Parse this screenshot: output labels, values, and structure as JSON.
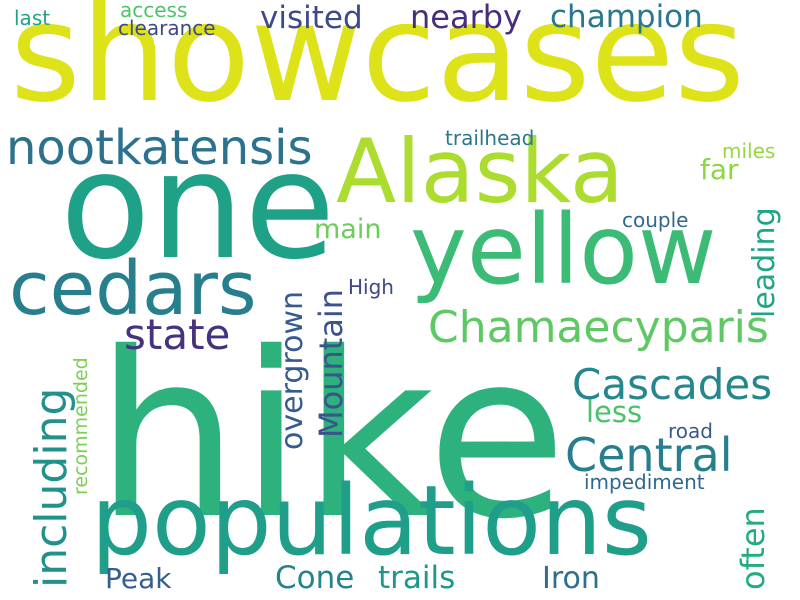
{
  "words": [
    {
      "text": "showcases",
      "color": "#dde318"
    },
    {
      "text": "hike",
      "color": "#2db27d"
    },
    {
      "text": "one",
      "color": "#1fa187"
    },
    {
      "text": "Alaska",
      "color": "#addc30"
    },
    {
      "text": "yellow",
      "color": "#3bbb75"
    },
    {
      "text": "populations",
      "color": "#1f9e89"
    },
    {
      "text": "cedars",
      "color": "#277f8e"
    },
    {
      "text": "nootkatensis",
      "color": "#2c728e"
    },
    {
      "text": "Chamaecyparis",
      "color": "#5ec962"
    },
    {
      "text": "state",
      "color": "#46327e"
    },
    {
      "text": "Cascades",
      "color": "#24868e"
    },
    {
      "text": "Central",
      "color": "#277f8e"
    },
    {
      "text": "including",
      "color": "#21918c"
    },
    {
      "text": "overgrown",
      "color": "#365c8d"
    },
    {
      "text": "Mountain",
      "color": "#3b528b"
    },
    {
      "text": "leading",
      "color": "#20a486"
    },
    {
      "text": "often",
      "color": "#25ab82"
    },
    {
      "text": "visited",
      "color": "#3e4989"
    },
    {
      "text": "nearby",
      "color": "#472d7b"
    },
    {
      "text": "champion",
      "color": "#2a788e"
    },
    {
      "text": "trails",
      "color": "#1f988b"
    },
    {
      "text": "Cone",
      "color": "#25838e"
    },
    {
      "text": "Iron",
      "color": "#2e6e8e"
    },
    {
      "text": "Peak",
      "color": "#355f8d"
    },
    {
      "text": "less",
      "color": "#4ac16d"
    },
    {
      "text": "main",
      "color": "#6ccd5a"
    },
    {
      "text": "far",
      "color": "#8bd646"
    },
    {
      "text": "road",
      "color": "#38598c"
    },
    {
      "text": "impediment",
      "color": "#31688e"
    },
    {
      "text": "High",
      "color": "#3f4788"
    },
    {
      "text": "couple",
      "color": "#31688e"
    },
    {
      "text": "trailhead",
      "color": "#2a788e"
    },
    {
      "text": "miles",
      "color": "#95d840"
    },
    {
      "text": "recommended",
      "color": "#7ad151"
    },
    {
      "text": "access",
      "color": "#4ec36b"
    },
    {
      "text": "clearance",
      "color": "#3e4989"
    },
    {
      "text": "last",
      "color": "#20a486"
    }
  ]
}
